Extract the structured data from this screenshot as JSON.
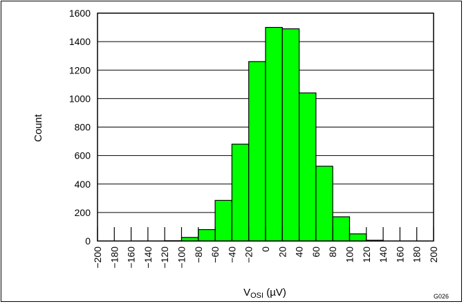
{
  "chart_data": {
    "type": "bar",
    "categories": [
      "-200",
      "-180",
      "-160",
      "-140",
      "-120",
      "-100",
      "-80",
      "-60",
      "-40",
      "-20",
      "0",
      "20",
      "40",
      "60",
      "80",
      "100",
      "120",
      "140",
      "160",
      "180"
    ],
    "values": [
      0,
      0,
      0,
      0,
      2,
      25,
      80,
      285,
      680,
      1260,
      1500,
      1490,
      1040,
      525,
      170,
      50,
      5,
      0,
      0,
      0
    ],
    "bin_width": 20,
    "x_ticks": [
      "−200",
      "−180",
      "−160",
      "−140",
      "−120",
      "−100",
      "−80",
      "−60",
      "−40",
      "−20",
      "0",
      "20",
      "40",
      "60",
      "80",
      "100",
      "120",
      "140",
      "160",
      "180",
      "200"
    ],
    "y_ticks": [
      "0",
      "200",
      "400",
      "600",
      "800",
      "1000",
      "1200",
      "1400",
      "1600"
    ],
    "xlim": [
      -200,
      200
    ],
    "ylim": [
      0,
      1600
    ],
    "xlabel_main": "V",
    "xlabel_sub": "OSI",
    "xlabel_unit": " (µV)",
    "ylabel": "Count",
    "grid": "horizontal",
    "bar_color": "#00ff00",
    "bar_edge_color": "#000000",
    "figure_id": "G026"
  }
}
